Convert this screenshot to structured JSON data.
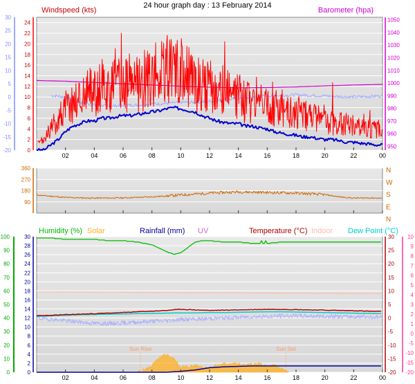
{
  "page": {
    "title": "24 hour graph day : 13 February 2014"
  },
  "colors": {
    "wind_speed": "#ff0000",
    "wind_avg": "#0000cc",
    "barometer": "#cc00cc",
    "temperature_wind": "#aab0ff",
    "direction": "#cc6600",
    "humidity": "#00bb00",
    "solar": "#ffb020",
    "rainfall": "#000099",
    "uv": "#cc66cc",
    "temperature": "#aa0000",
    "indoor": "#ffbbaa",
    "dew_point": "#00cccc",
    "apparent_temp": "#aab0ff",
    "axis_left_top": "#99aaff",
    "axis_right_bottom": "#ff3399",
    "axis_left_bottom": "#00aa00",
    "panel_bg_top": "#e8e8e8",
    "panel_bg_bottom": "#d8d8d8",
    "grid": "#ffffff"
  },
  "chart_data": [
    {
      "type": "line",
      "id": "wind_panel",
      "title": "Windspeed (kts)",
      "right_title": "Barometer (hpa)",
      "x_ticks": [
        "02",
        "04",
        "06",
        "08",
        "10",
        "12",
        "14",
        "16",
        "18",
        "20",
        "22",
        "00"
      ],
      "x_range_hours": [
        0,
        24
      ],
      "y_left_ticks": [
        0,
        2,
        4,
        6,
        8,
        10,
        12,
        14,
        16,
        18,
        20,
        22,
        24
      ],
      "y_left_range": [
        0,
        25
      ],
      "y_outer_ticks": [
        -20,
        -15,
        -10,
        -5,
        0,
        5,
        10,
        15,
        20,
        25,
        30
      ],
      "y_right_ticks": [
        950,
        960,
        970,
        980,
        990,
        1000,
        1010,
        1020,
        1030,
        1040,
        1050
      ],
      "y_right_range": [
        947,
        1052
      ],
      "series": [
        {
          "key": "wind_gust",
          "x": [
            0,
            0.5,
            1,
            1.5,
            2,
            2.5,
            3,
            3.5,
            4,
            4.5,
            5,
            5.5,
            6,
            6.5,
            7,
            7.5,
            8,
            8.5,
            9,
            9.5,
            10,
            10.5,
            11,
            11.5,
            12,
            12.5,
            13,
            13.5,
            14,
            14.5,
            15,
            15.5,
            16,
            16.5,
            17,
            17.5,
            18,
            18.5,
            19,
            19.5,
            20,
            20.5,
            21,
            21.5,
            22,
            22.5,
            23,
            23.5,
            24
          ],
          "values": [
            1,
            2,
            4,
            6,
            8,
            9,
            10,
            11,
            11,
            12,
            12,
            12,
            12,
            13,
            13,
            13,
            14,
            14,
            15,
            15,
            14,
            14,
            13,
            12,
            12,
            11,
            11,
            10,
            10,
            9,
            9,
            9,
            8,
            8,
            8,
            7,
            7,
            7,
            6,
            6,
            6,
            5,
            5,
            5,
            5,
            4,
            4,
            4,
            4
          ]
        },
        {
          "key": "wind_avg",
          "x": [
            0,
            0.5,
            1,
            1.5,
            2,
            2.5,
            3,
            3.5,
            4,
            4.5,
            5,
            5.5,
            6,
            6.5,
            7,
            7.5,
            8,
            8.5,
            9,
            9.5,
            10,
            10.5,
            11,
            11.5,
            12,
            12.5,
            13,
            13.5,
            14,
            14.5,
            15,
            15.5,
            16,
            16.5,
            17,
            17.5,
            18,
            18.5,
            19,
            19.5,
            20,
            20.5,
            21,
            21.5,
            22,
            22.5,
            23,
            23.5,
            24
          ],
          "values": [
            0,
            0,
            1,
            2,
            3.5,
            4.5,
            5,
            5.5,
            5.5,
            6,
            6,
            6.3,
            6.5,
            6.5,
            6.7,
            7,
            7.2,
            7.4,
            7.8,
            8,
            7.8,
            7.5,
            7.2,
            6.5,
            6,
            5.5,
            5.2,
            5,
            5,
            4.5,
            4.5,
            4.2,
            4,
            3.5,
            3.2,
            3,
            2.8,
            2.5,
            2.5,
            2.2,
            2,
            2,
            1.8,
            1.5,
            1.5,
            1.3,
            1.2,
            1,
            1
          ]
        },
        {
          "key": "barometer",
          "x": [
            0,
            2,
            4,
            6,
            8,
            10,
            12,
            14,
            16,
            18,
            20,
            22,
            24
          ],
          "values": [
            1002,
            1001.5,
            1000.5,
            999.5,
            998.5,
            997.5,
            996.8,
            996.3,
            996.5,
            997,
            997.8,
            998.5,
            999
          ]
        },
        {
          "key": "temperature_ghost",
          "x": [
            0,
            1,
            2,
            3,
            4,
            5,
            6,
            7,
            8,
            9,
            10,
            11,
            12,
            13,
            14,
            15,
            16,
            17,
            18,
            19,
            20,
            21,
            22,
            23,
            24
          ],
          "values": [
            10,
            10.3,
            10,
            9,
            8.5,
            8.3,
            8.4,
            8.5,
            8.7,
            8.8,
            9,
            9,
            9.2,
            9.5,
            9.7,
            10,
            10.2,
            10.3,
            10.4,
            10.3,
            10.2,
            10.1,
            10,
            10.1,
            10.2
          ]
        }
      ]
    },
    {
      "type": "line",
      "id": "direction_panel",
      "y_left_ticks": [
        90,
        180,
        270,
        360
      ],
      "y_left_range": [
        0,
        360
      ],
      "y_right_labels": [
        "N",
        "W",
        "S",
        "E",
        "N"
      ],
      "series": [
        {
          "key": "direction",
          "x": [
            0,
            2,
            4,
            6,
            8,
            10,
            12,
            14,
            16,
            18,
            20,
            21,
            22,
            23,
            24
          ],
          "values": [
            145,
            125,
            120,
            122,
            130,
            145,
            160,
            170,
            165,
            160,
            148,
            130,
            120,
            122,
            120
          ]
        }
      ]
    },
    {
      "type": "line",
      "id": "climate_panel",
      "legend": [
        "Humidity (%)",
        "Solar",
        "Rainfall (mm)",
        "UV",
        "Temperature (°C)",
        "Indoor",
        "Dew Point (°C)"
      ],
      "y_humidity_ticks": [
        0,
        10,
        20,
        30,
        40,
        50,
        60,
        70,
        80,
        90,
        100
      ],
      "y_solar_ticks": [
        0,
        2,
        4,
        6,
        8,
        10,
        12,
        14,
        16,
        18,
        20,
        22,
        24,
        26,
        28,
        30
      ],
      "y_temp_ticks": [
        -20,
        -15,
        -10,
        -5,
        0,
        5,
        10,
        15,
        20,
        25,
        30
      ],
      "y_outer_ticks": [
        -20,
        -15,
        -10,
        -5,
        0,
        1,
        2,
        3,
        4,
        5,
        6,
        7,
        8,
        9,
        10
      ],
      "annotations": [
        "Sun Rise",
        "Sun Set"
      ],
      "annotation_x_hours": [
        7.2,
        17.3
      ],
      "series": [
        {
          "key": "humidity",
          "x": [
            0,
            1,
            2,
            3,
            4,
            5,
            6,
            7,
            8,
            9,
            9.5,
            10,
            10.5,
            11,
            11.5,
            12,
            13,
            14,
            15,
            16,
            17,
            18,
            19,
            20,
            21,
            22,
            23,
            24
          ],
          "values": [
            99,
            99,
            98,
            98,
            98,
            97,
            97,
            96,
            94,
            89,
            87,
            88,
            92,
            96,
            97,
            97,
            96,
            96,
            95,
            95,
            96,
            96,
            96,
            96,
            96,
            96,
            96,
            96
          ]
        },
        {
          "key": "temperature",
          "x": [
            0,
            1,
            2,
            3,
            4,
            5,
            6,
            7,
            8,
            9,
            10,
            11,
            12,
            13,
            14,
            15,
            16,
            17,
            18,
            19,
            20,
            21,
            22,
            23,
            24
          ],
          "values": [
            0.8,
            1,
            1.2,
            1.4,
            1.6,
            1.8,
            2.0,
            2.3,
            2.5,
            2.8,
            3.2,
            3.0,
            2.8,
            2.9,
            3.0,
            3.1,
            3.2,
            3.2,
            3.1,
            3.0,
            2.9,
            2.8,
            2.7,
            2.5,
            2.4
          ]
        },
        {
          "key": "dew_point",
          "x": [
            0,
            1,
            2,
            3,
            4,
            5,
            6,
            7,
            8,
            9,
            10,
            11,
            12,
            13,
            14,
            15,
            16,
            17,
            18,
            19,
            20,
            21,
            22,
            23,
            24
          ],
          "values": [
            0.6,
            0.8,
            1.0,
            1.2,
            1.3,
            1.4,
            1.5,
            1.6,
            1.7,
            1.8,
            1.9,
            1.9,
            2.0,
            2.0,
            2.1,
            2.2,
            2.3,
            2.3,
            2.2,
            2.1,
            2.0,
            1.9,
            1.8,
            1.7,
            1.6
          ]
        },
        {
          "key": "apparent",
          "x": [
            0,
            1,
            2,
            3,
            4,
            5,
            6,
            7,
            8,
            9,
            10,
            11,
            12,
            13,
            14,
            15,
            16,
            17,
            18,
            19,
            20,
            21,
            22,
            23,
            24
          ],
          "values": [
            0,
            -0.5,
            -1,
            -1.5,
            -2,
            -2,
            -1.8,
            -1.5,
            -1.2,
            -1,
            -0.5,
            -0.5,
            -0.2,
            0,
            0.2,
            0.5,
            0.5,
            0.8,
            0.8,
            0.7,
            0.6,
            0.5,
            0.5,
            0.4,
            0.3
          ]
        },
        {
          "key": "indoor",
          "x": [
            0,
            24
          ],
          "values": [
            17.8,
            17.4
          ]
        },
        {
          "key": "rainfall",
          "x": [
            0,
            9,
            10,
            11,
            12,
            13,
            14,
            15,
            16,
            17,
            18,
            23,
            24
          ],
          "values": [
            0,
            0,
            0.2,
            0.5,
            1,
            1.2,
            1.3,
            1.4,
            1.4,
            1.4,
            1.4,
            1.4,
            1.4
          ]
        },
        {
          "key": "solar",
          "x": [
            7,
            7.5,
            8,
            8.5,
            9,
            9.5,
            10,
            10.5,
            11,
            11.5,
            12,
            12.5,
            13,
            13.5,
            14,
            14.5,
            15,
            15.5,
            16,
            16.5,
            17,
            17.5
          ],
          "values": [
            0,
            0.5,
            1.5,
            3,
            4,
            3,
            1.2,
            1.2,
            1.5,
            1.2,
            1,
            1.5,
            1.8,
            2,
            1.8,
            1.5,
            1.8,
            1.8,
            1.2,
            1.5,
            0.8,
            0
          ]
        }
      ]
    }
  ]
}
